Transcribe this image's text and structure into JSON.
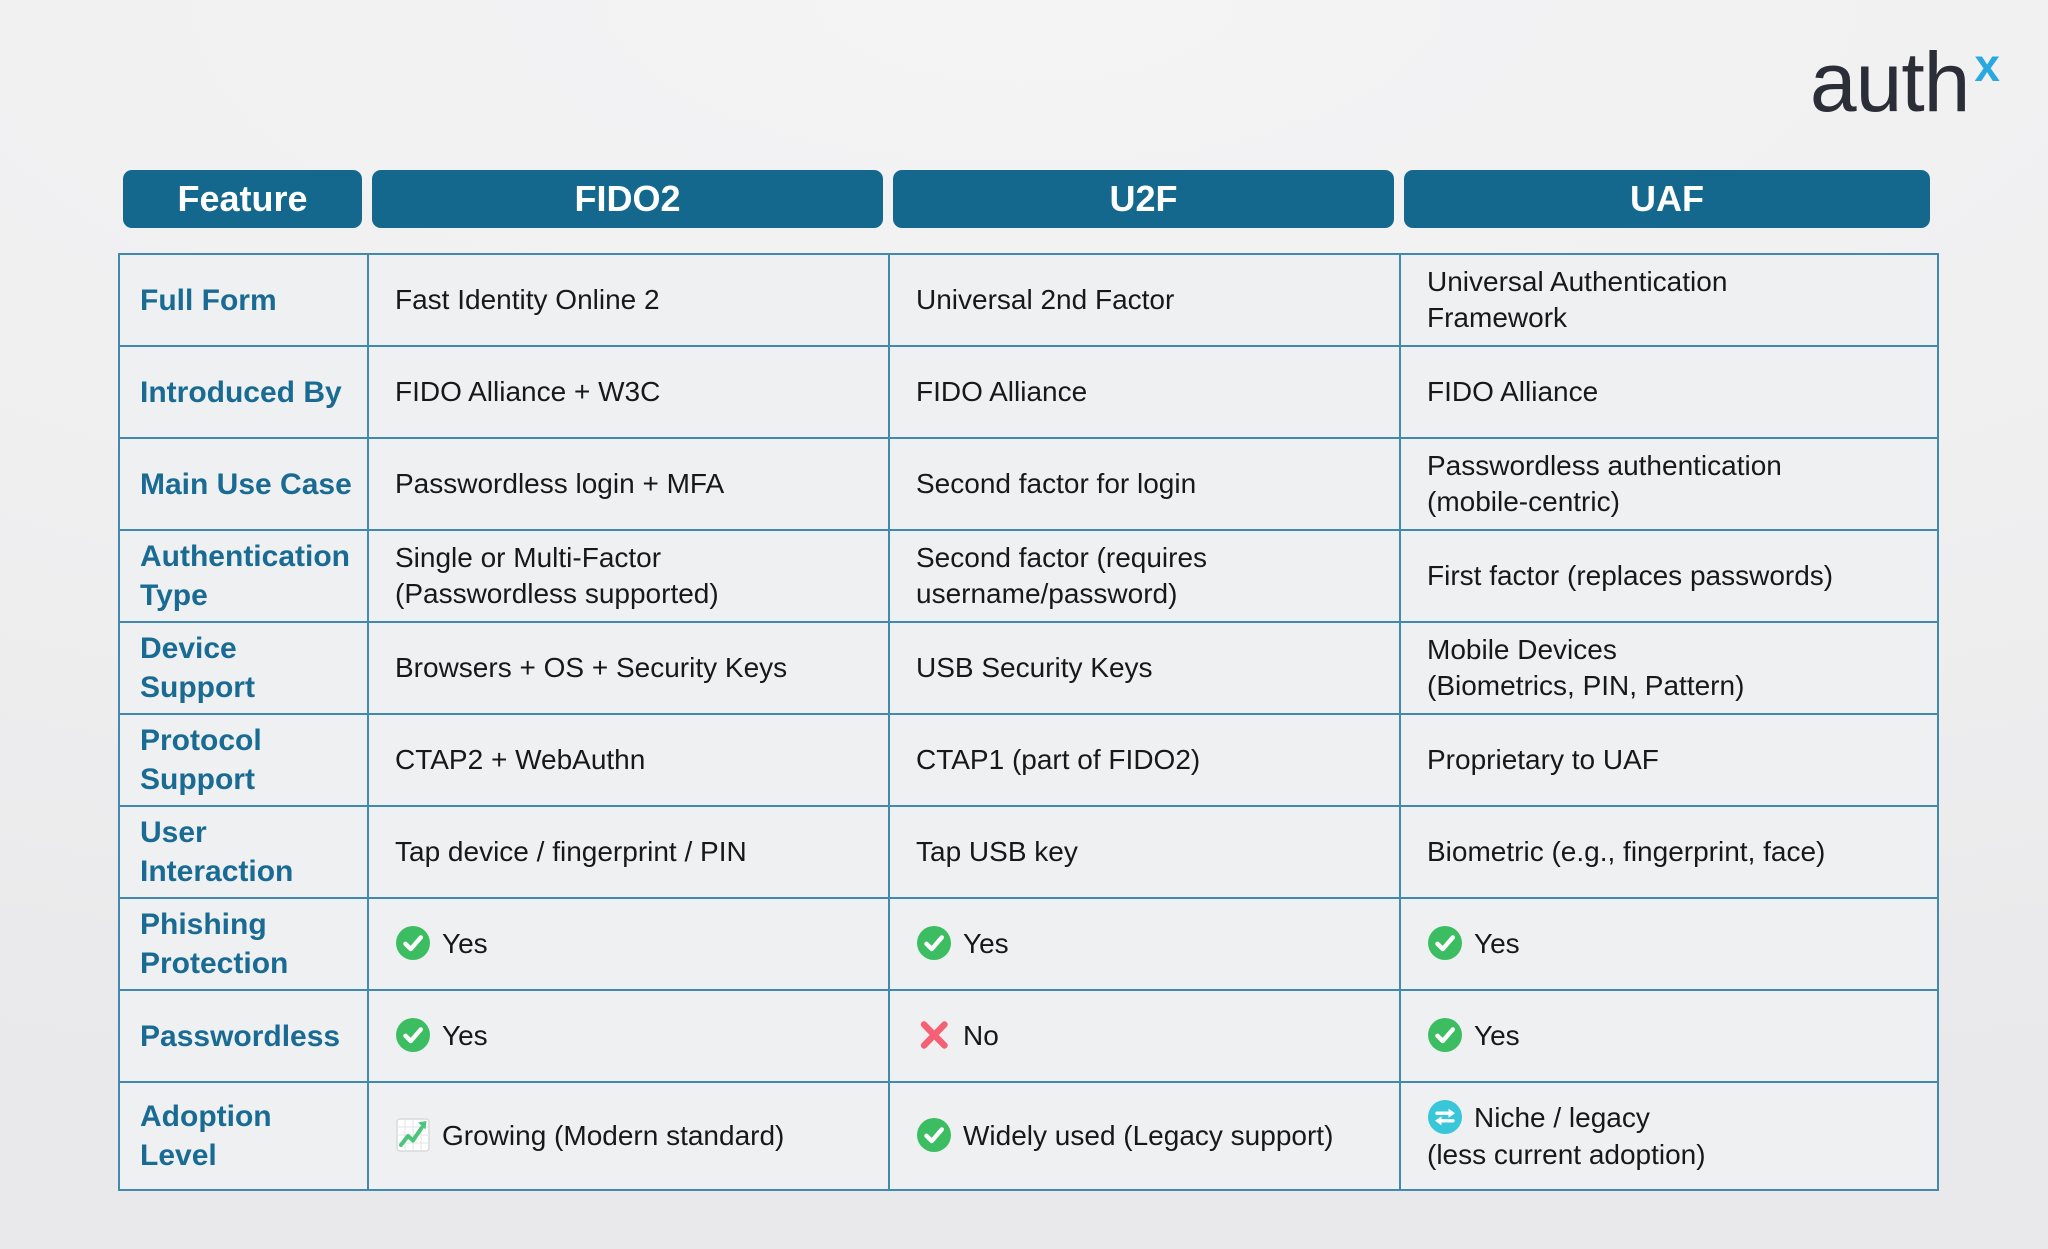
{
  "logo": {
    "text": "auth",
    "mark": "x"
  },
  "theme": {
    "header_bg": "#15688D",
    "border": "#4189AE",
    "label_color": "#1A6B93",
    "text_color": "#16181C",
    "cell_bg": "#EFF0F1",
    "page_bg_top": "#F4F4F5",
    "page_bg_bottom": "#E9E9EB",
    "check_green": "#3DBD62",
    "cross_pink": "#F56074",
    "refresh_cyan": "#38C6D9",
    "chart_green": "#4CC47C",
    "logo_color": "#2B2E36",
    "logo_mark_color": "#2AA9E1"
  },
  "chart_data": {
    "type": "table",
    "title": "",
    "columns": [
      "Feature",
      "FIDO2",
      "U2F",
      "UAF"
    ],
    "rows": [
      {
        "feature": "Full Form",
        "cells": [
          {
            "text": "Fast Identity Online 2"
          },
          {
            "text": "Universal 2nd Factor"
          },
          {
            "text": "Universal Authentication\nFramework"
          }
        ]
      },
      {
        "feature": "Introduced By",
        "cells": [
          {
            "text": "FIDO Alliance + W3C"
          },
          {
            "text": "FIDO Alliance"
          },
          {
            "text": "FIDO Alliance"
          }
        ]
      },
      {
        "feature": "Main Use Case",
        "cells": [
          {
            "text": "Passwordless login + MFA"
          },
          {
            "text": "Second factor for login"
          },
          {
            "text": "Passwordless authentication\n(mobile-centric)"
          }
        ]
      },
      {
        "feature": "Authentication\nType",
        "cells": [
          {
            "text": "Single or Multi-Factor\n(Passwordless supported)"
          },
          {
            "text": "Second factor (requires\nusername/password)"
          },
          {
            "text": "First factor (replaces passwords)"
          }
        ]
      },
      {
        "feature": "Device\nSupport",
        "cells": [
          {
            "text": "Browsers + OS + Security Keys"
          },
          {
            "text": "USB Security Keys"
          },
          {
            "text": "Mobile Devices\n(Biometrics, PIN, Pattern)"
          }
        ]
      },
      {
        "feature": "Protocol\nSupport",
        "cells": [
          {
            "text": "CTAP2 + WebAuthn"
          },
          {
            "text": "CTAP1 (part of FIDO2)"
          },
          {
            "text": "Proprietary to UAF"
          }
        ]
      },
      {
        "feature": "User\nInteraction",
        "cells": [
          {
            "text": "Tap device / fingerprint / PIN"
          },
          {
            "text": "Tap USB key"
          },
          {
            "text": "Biometric (e.g., fingerprint, face)"
          }
        ]
      },
      {
        "feature": "Phishing\nProtection",
        "cells": [
          {
            "icon": "check-circle",
            "text": "Yes"
          },
          {
            "icon": "check-circle",
            "text": "Yes"
          },
          {
            "icon": "check-circle",
            "text": "Yes"
          }
        ]
      },
      {
        "feature": "Passwordless",
        "cells": [
          {
            "icon": "check-circle",
            "text": "Yes"
          },
          {
            "icon": "cross",
            "text": "No"
          },
          {
            "icon": "check-circle",
            "text": "Yes"
          }
        ]
      },
      {
        "feature": "Adoption\nLevel",
        "cells": [
          {
            "icon": "chart-increasing",
            "text": "Growing (Modern standard)"
          },
          {
            "icon": "check-circle",
            "text": "Widely used (Legacy support)"
          },
          {
            "icon": "refresh-circle",
            "text": "Niche / legacy\n(less current adoption)"
          }
        ]
      }
    ]
  }
}
